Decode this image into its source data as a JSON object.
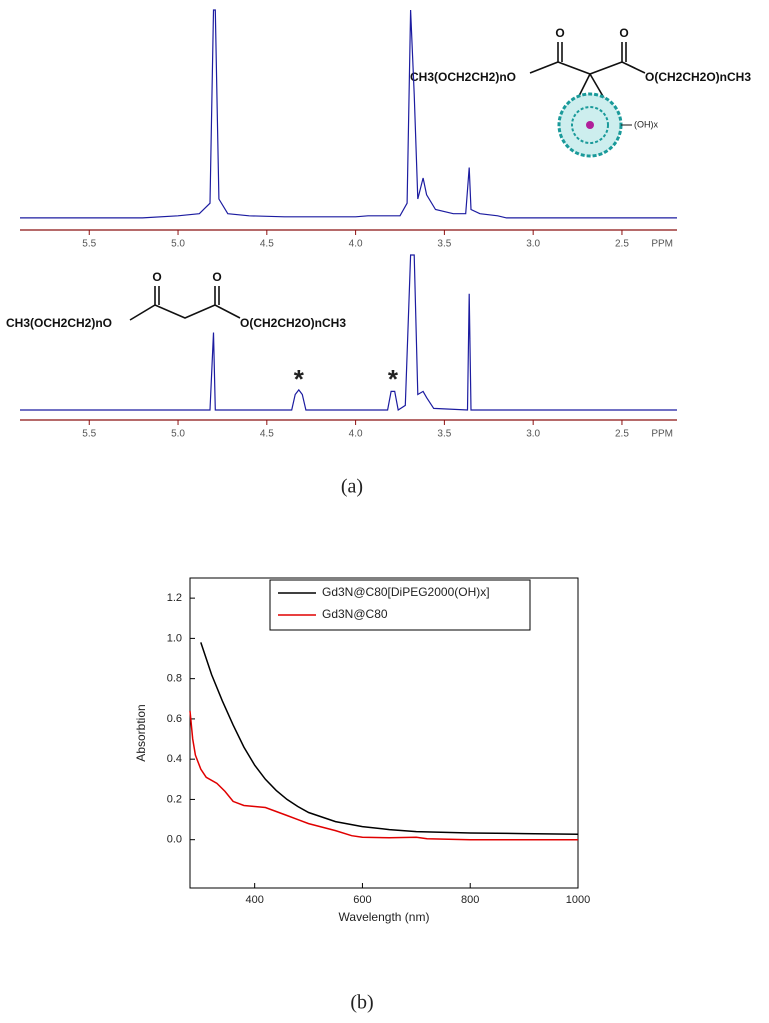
{
  "chart_data": [
    {
      "type": "line",
      "xlabel": "PPM",
      "xlim": [
        5.89,
        2.19
      ],
      "ylim": [
        0,
        100
      ],
      "xticks": [
        5.5,
        {
          "value": 5,
          "label": "5.0"
        },
        4.5,
        {
          "value": 4,
          "label": "4.0"
        },
        3.5,
        {
          "value": 3,
          "label": "3.0"
        },
        2.5
      ],
      "structure": {
        "left": "CH3(OCH2CH2)nO",
        "right": "O(CH2CH2O)nCH3",
        "oxygens": [
          "O",
          "O"
        ],
        "substituent": "(OH)x"
      },
      "series": [
        {
          "color": "#1c1ca0",
          "x": [
            5.89,
            5.2,
            5.0,
            4.88,
            4.82,
            4.8,
            4.79,
            4.77,
            4.72,
            4.6,
            4.4,
            4.0,
            3.93,
            3.75,
            3.71,
            3.69,
            3.67,
            3.65,
            3.62,
            3.6,
            3.55,
            3.45,
            3.38,
            3.36,
            3.35,
            3.3,
            3.2,
            3.15,
            2.19
          ],
          "values": [
            1,
            1,
            2,
            3,
            8,
            100,
            100,
            10,
            3,
            2,
            1.5,
            1.5,
            2,
            2,
            8,
            100,
            60,
            10,
            20,
            12,
            5,
            3,
            3,
            25,
            5,
            3,
            2,
            1,
            1
          ]
        }
      ]
    },
    {
      "type": "line",
      "xlabel": "PPM",
      "xlim": [
        5.89,
        2.19
      ],
      "ylim": [
        0,
        100
      ],
      "xticks": [
        5.5,
        {
          "value": 5,
          "label": "5.0"
        },
        4.5,
        {
          "value": 4,
          "label": "4.0"
        },
        3.5,
        {
          "value": 3,
          "label": "3.0"
        },
        2.5
      ],
      "structure": {
        "left": "CH3(OCH2CH2)nO",
        "right": "O(CH2CH2O)nCH3",
        "oxygens": [
          "O",
          "O"
        ]
      },
      "annotations": [
        {
          "text": "*",
          "x": 4.32
        },
        {
          "text": "*",
          "x": 3.79
        }
      ],
      "series": [
        {
          "color": "#1c1ca0",
          "x": [
            5.89,
            4.82,
            4.8,
            4.79,
            4.36,
            4.34,
            4.32,
            4.3,
            4.28,
            3.82,
            3.8,
            3.78,
            3.76,
            3.72,
            3.69,
            3.67,
            3.65,
            3.62,
            3.6,
            3.56,
            3.37,
            3.36,
            3.35,
            2.19
          ],
          "values": [
            0,
            0,
            50,
            0,
            0,
            10,
            13,
            10,
            0,
            0,
            12,
            12,
            0,
            3,
            100,
            100,
            10,
            12,
            8,
            1,
            0,
            75,
            0,
            0
          ]
        }
      ]
    },
    {
      "type": "line",
      "xlabel": "Wavelength (nm)",
      "ylabel": "Absorbtion",
      "xlim": [
        280,
        1000
      ],
      "ylim": [
        -0.24,
        1.3
      ],
      "xticks": [
        400,
        600,
        800,
        1000
      ],
      "yticks": [
        {
          "value": 0,
          "label": "0.0"
        },
        0.2,
        0.4,
        0.6,
        0.8,
        {
          "value": 1,
          "label": "1.0"
        },
        1.2
      ],
      "legend": "upper left",
      "series": [
        {
          "name": "Gd3N@C80[DiPEG2000(OH)x]",
          "color": "#000000",
          "x": [
            300,
            320,
            340,
            360,
            380,
            400,
            420,
            440,
            460,
            480,
            500,
            550,
            600,
            650,
            700,
            800,
            900,
            1000
          ],
          "values": [
            0.98,
            0.82,
            0.69,
            0.57,
            0.46,
            0.37,
            0.3,
            0.245,
            0.2,
            0.165,
            0.135,
            0.09,
            0.065,
            0.05,
            0.04,
            0.033,
            0.03,
            0.027
          ]
        },
        {
          "name": "Gd3N@C80",
          "color": "#e00000",
          "x": [
            280,
            285,
            290,
            300,
            310,
            330,
            345,
            360,
            380,
            400,
            420,
            440,
            460,
            480,
            500,
            550,
            580,
            600,
            650,
            700,
            720,
            800,
            1000
          ],
          "values": [
            0.64,
            0.5,
            0.42,
            0.35,
            0.31,
            0.28,
            0.24,
            0.19,
            0.17,
            0.165,
            0.16,
            0.14,
            0.12,
            0.1,
            0.08,
            0.045,
            0.02,
            0.012,
            0.01,
            0.012,
            0.005,
            0,
            0
          ]
        }
      ]
    }
  ],
  "captions": [
    "(a)",
    "(b)"
  ]
}
